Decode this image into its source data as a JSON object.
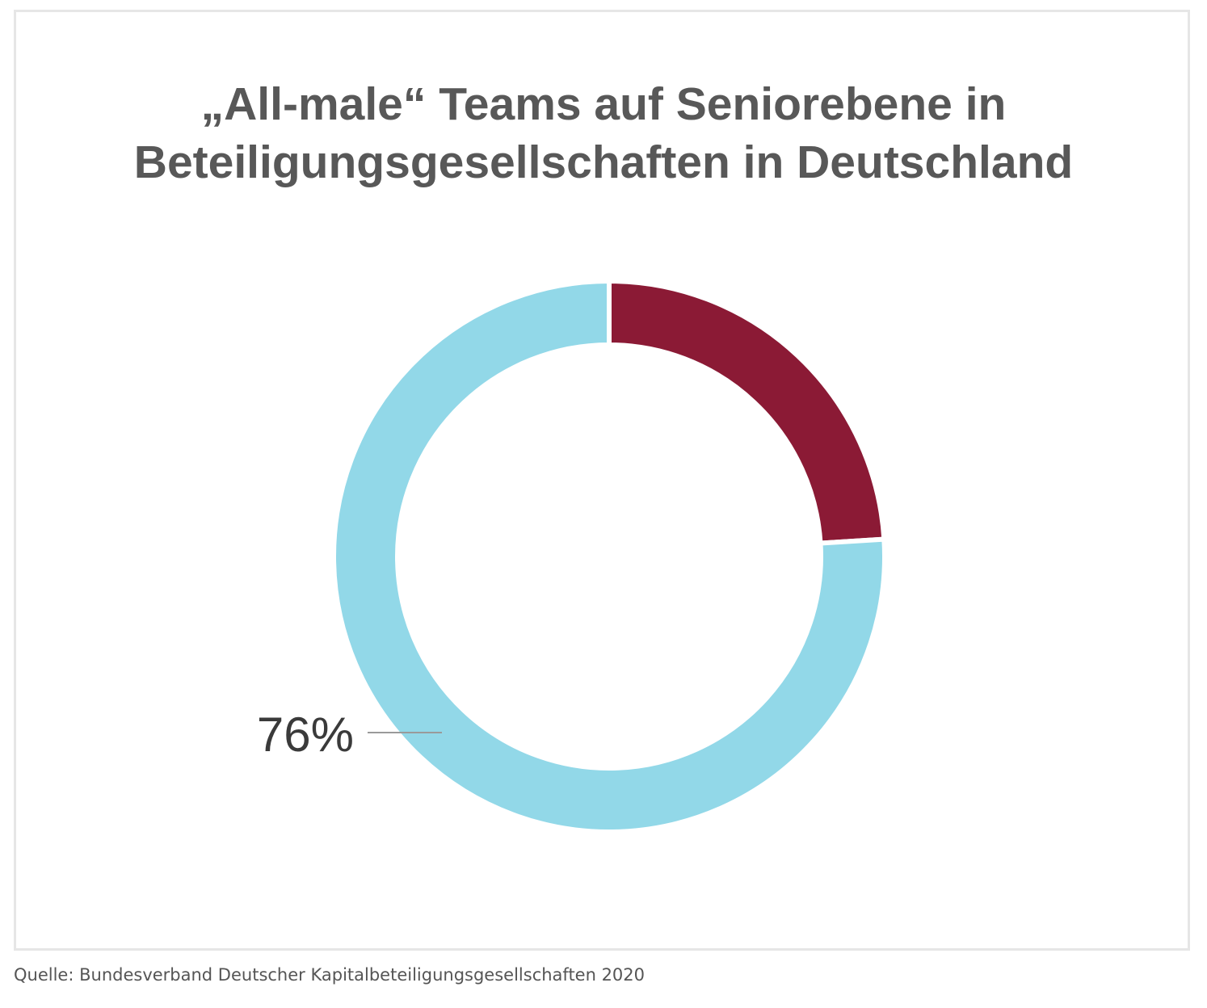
{
  "chart_data": {
    "type": "pie",
    "subtype": "donut",
    "title_lines": [
      "„All-male“ Teams auf Seniorebene in",
      "Beteiligungsgesellschaften in Deutschland"
    ],
    "slices": [
      {
        "value": 24,
        "color": "#8b1a35"
      },
      {
        "value": 76,
        "color": "#92d8e8",
        "label": "76%"
      }
    ],
    "start_angle": "12 o'clock",
    "direction": "clockwise",
    "label_color": "#3a3a3a",
    "leader_color": "#9a9a9a"
  },
  "source": "Quelle: Bundesverband Deutscher Kapitalbeteiligungsgesellschaften 2020"
}
